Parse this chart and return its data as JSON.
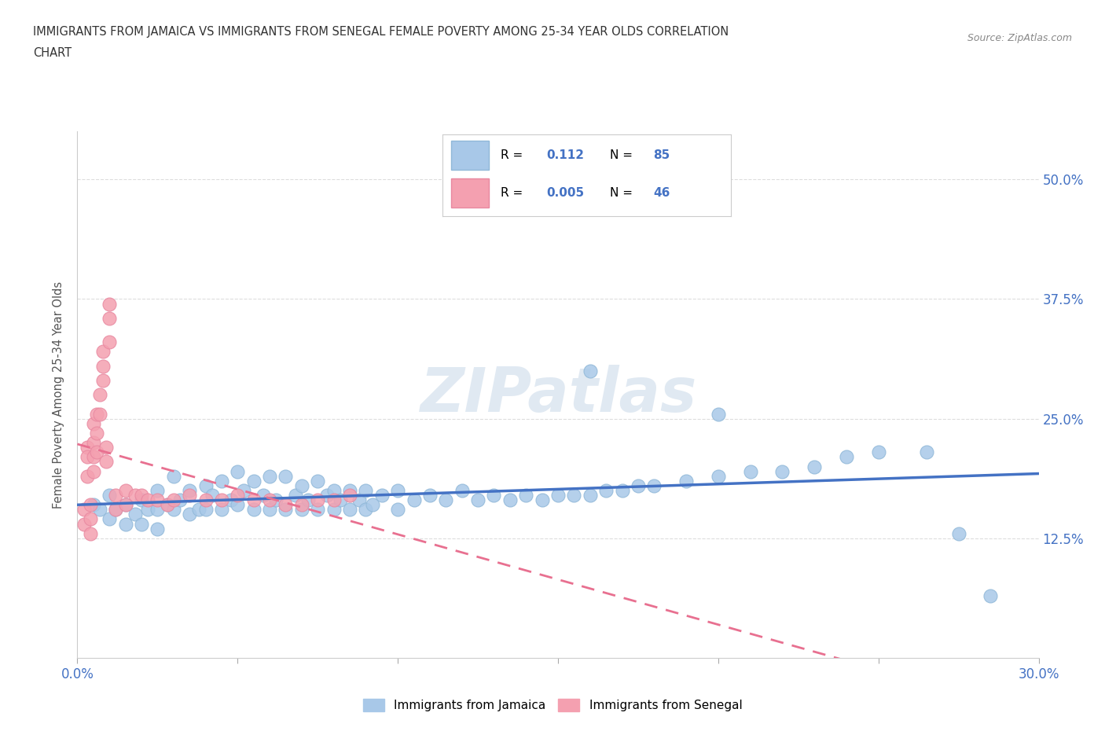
{
  "title_line1": "IMMIGRANTS FROM JAMAICA VS IMMIGRANTS FROM SENEGAL FEMALE POVERTY AMONG 25-34 YEAR OLDS CORRELATION",
  "title_line2": "CHART",
  "source_text": "Source: ZipAtlas.com",
  "ylabel": "Female Poverty Among 25-34 Year Olds",
  "xlim": [
    0.0,
    0.3
  ],
  "ylim": [
    0.0,
    0.55
  ],
  "xticks": [
    0.0,
    0.05,
    0.1,
    0.15,
    0.2,
    0.25,
    0.3
  ],
  "xticklabels": [
    "0.0%",
    "",
    "",
    "",
    "",
    "",
    "30.0%"
  ],
  "yticks": [
    0.0,
    0.125,
    0.25,
    0.375,
    0.5
  ],
  "yticklabels": [
    "",
    "12.5%",
    "25.0%",
    "37.5%",
    "50.0%"
  ],
  "jamaica_color": "#a8c8e8",
  "senegal_color": "#f4a0b0",
  "jamaica_line_color": "#4472c4",
  "senegal_line_color": "#e87090",
  "legend_R_jamaica": "0.112",
  "legend_N_jamaica": "85",
  "legend_R_senegal": "0.005",
  "legend_N_senegal": "46",
  "watermark": "ZIPatlas",
  "jamaica_x": [
    0.005,
    0.007,
    0.01,
    0.01,
    0.012,
    0.015,
    0.015,
    0.018,
    0.02,
    0.02,
    0.022,
    0.025,
    0.025,
    0.025,
    0.028,
    0.03,
    0.03,
    0.032,
    0.035,
    0.035,
    0.038,
    0.04,
    0.04,
    0.042,
    0.045,
    0.045,
    0.048,
    0.05,
    0.05,
    0.052,
    0.055,
    0.055,
    0.058,
    0.06,
    0.06,
    0.062,
    0.065,
    0.065,
    0.068,
    0.07,
    0.07,
    0.072,
    0.075,
    0.075,
    0.078,
    0.08,
    0.08,
    0.082,
    0.085,
    0.085,
    0.088,
    0.09,
    0.09,
    0.092,
    0.095,
    0.1,
    0.1,
    0.105,
    0.11,
    0.115,
    0.12,
    0.125,
    0.13,
    0.135,
    0.14,
    0.145,
    0.15,
    0.155,
    0.16,
    0.165,
    0.17,
    0.175,
    0.18,
    0.19,
    0.2,
    0.21,
    0.22,
    0.23,
    0.24,
    0.25,
    0.265,
    0.275,
    0.285,
    0.16,
    0.2
  ],
  "jamaica_y": [
    0.16,
    0.155,
    0.17,
    0.145,
    0.155,
    0.16,
    0.14,
    0.15,
    0.165,
    0.14,
    0.155,
    0.175,
    0.155,
    0.135,
    0.16,
    0.19,
    0.155,
    0.165,
    0.175,
    0.15,
    0.155,
    0.18,
    0.155,
    0.17,
    0.185,
    0.155,
    0.165,
    0.195,
    0.16,
    0.175,
    0.185,
    0.155,
    0.17,
    0.19,
    0.155,
    0.165,
    0.19,
    0.155,
    0.17,
    0.18,
    0.155,
    0.165,
    0.185,
    0.155,
    0.17,
    0.175,
    0.155,
    0.165,
    0.175,
    0.155,
    0.165,
    0.175,
    0.155,
    0.16,
    0.17,
    0.175,
    0.155,
    0.165,
    0.17,
    0.165,
    0.175,
    0.165,
    0.17,
    0.165,
    0.17,
    0.165,
    0.17,
    0.17,
    0.17,
    0.175,
    0.175,
    0.18,
    0.18,
    0.185,
    0.19,
    0.195,
    0.195,
    0.2,
    0.21,
    0.215,
    0.215,
    0.13,
    0.065,
    0.3,
    0.255
  ],
  "senegal_x": [
    0.002,
    0.002,
    0.003,
    0.003,
    0.003,
    0.004,
    0.004,
    0.004,
    0.005,
    0.005,
    0.005,
    0.005,
    0.006,
    0.006,
    0.006,
    0.007,
    0.007,
    0.008,
    0.008,
    0.008,
    0.009,
    0.009,
    0.01,
    0.01,
    0.01,
    0.012,
    0.012,
    0.015,
    0.015,
    0.018,
    0.02,
    0.022,
    0.025,
    0.028,
    0.03,
    0.035,
    0.04,
    0.045,
    0.05,
    0.055,
    0.06,
    0.065,
    0.07,
    0.075,
    0.08,
    0.085
  ],
  "senegal_y": [
    0.155,
    0.14,
    0.22,
    0.21,
    0.19,
    0.16,
    0.145,
    0.13,
    0.245,
    0.225,
    0.21,
    0.195,
    0.255,
    0.235,
    0.215,
    0.275,
    0.255,
    0.32,
    0.305,
    0.29,
    0.22,
    0.205,
    0.37,
    0.355,
    0.33,
    0.17,
    0.155,
    0.175,
    0.16,
    0.17,
    0.17,
    0.165,
    0.165,
    0.16,
    0.165,
    0.17,
    0.165,
    0.165,
    0.17,
    0.165,
    0.165,
    0.16,
    0.16,
    0.165,
    0.165,
    0.17
  ]
}
